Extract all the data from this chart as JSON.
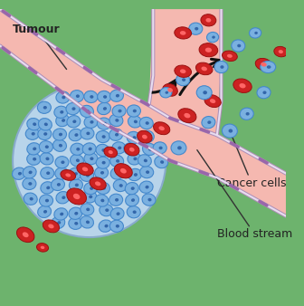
{
  "bg_color": "#6db36d",
  "blood_vessel_color": "#f5b8b0",
  "vessel_wall_color": "#e8e0f0",
  "vessel_wall_stroke": "#c8a0c8",
  "vessel_border_color": "#e07070",
  "red_cell_fill": "#cc2222",
  "red_cell_highlight": "#ff6666",
  "blue_cell_fill": "#7ab0e0",
  "blue_cell_dark": "#4488cc",
  "blue_cell_nucleus": "#3366aa",
  "tumour_bg": "#a8c8e8",
  "tumour_border": "#88aacc",
  "arrow_color": "#111111",
  "text_color": "#222222",
  "label_blood_stream": "Blood stream",
  "label_cancer_cells": "Cancer cells",
  "label_tumour": "Tumour"
}
